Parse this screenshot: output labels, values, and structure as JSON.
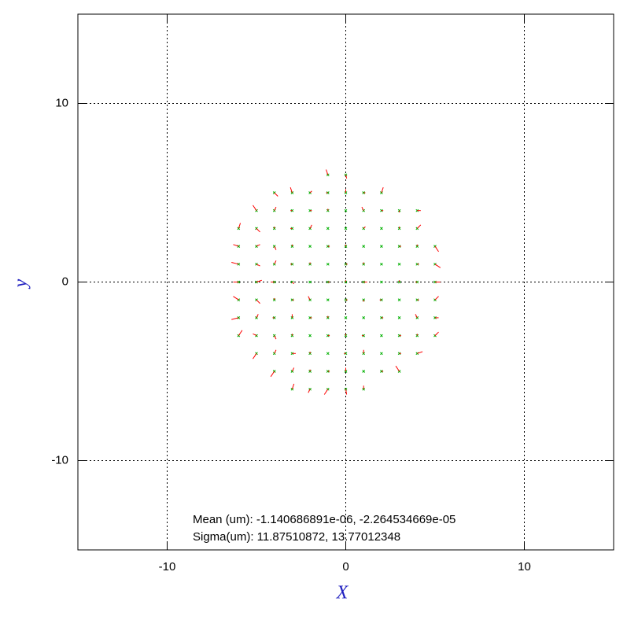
{
  "chart_data": {
    "type": "quiver",
    "xlabel": "X",
    "ylabel": "y",
    "xlim": [
      -15,
      15
    ],
    "ylim": [
      -15,
      15
    ],
    "xticks": [
      -10,
      0,
      10
    ],
    "yticks": [
      -10,
      0,
      10
    ],
    "grid": true,
    "point_color": "#00b000",
    "vector_color": "#ff0000",
    "annotations": [
      "Mean (um): -1.140686891e-06, -2.264534669e-05",
      "Sigma(um): 11.87510872, 13.77012348"
    ],
    "x": [
      -1,
      0,
      -4,
      -3,
      -2,
      -1,
      0,
      1,
      2,
      -5,
      -4,
      -3,
      -2,
      -1,
      0,
      1,
      2,
      3,
      4,
      -6,
      -5,
      -4,
      -3,
      -2,
      -1,
      0,
      1,
      2,
      3,
      4,
      -6,
      -5,
      -4,
      -3,
      -2,
      -1,
      0,
      1,
      2,
      3,
      4,
      5,
      -6,
      -5,
      -4,
      -3,
      -2,
      -1,
      0,
      1,
      2,
      3,
      4,
      5,
      -6,
      -5,
      -4,
      -3,
      -2,
      -1,
      0,
      1,
      2,
      3,
      4,
      5,
      -6,
      -5,
      -4,
      -3,
      -2,
      -1,
      0,
      1,
      2,
      3,
      4,
      5,
      -6,
      -5,
      -4,
      -3,
      -2,
      -1,
      0,
      1,
      2,
      3,
      4,
      5,
      -6,
      -5,
      -4,
      -3,
      -2,
      -1,
      0,
      1,
      2,
      3,
      4,
      5,
      -5,
      -4,
      -3,
      -2,
      -1,
      0,
      1,
      2,
      3,
      4,
      -4,
      -3,
      -2,
      -1,
      0,
      1,
      2,
      3,
      -3,
      -2,
      -1,
      0,
      1
    ],
    "y": [
      6,
      6,
      5,
      5,
      5,
      5,
      5,
      5,
      5,
      4,
      4,
      4,
      4,
      4,
      4,
      4,
      4,
      4,
      4,
      3,
      3,
      3,
      3,
      3,
      3,
      3,
      3,
      3,
      3,
      3,
      2,
      2,
      2,
      2,
      2,
      2,
      2,
      2,
      2,
      2,
      2,
      2,
      1,
      1,
      1,
      1,
      1,
      1,
      1,
      1,
      1,
      1,
      1,
      1,
      0,
      0,
      0,
      0,
      0,
      0,
      0,
      0,
      0,
      0,
      0,
      0,
      -1,
      -1,
      -1,
      -1,
      -1,
      -1,
      -1,
      -1,
      -1,
      -1,
      -1,
      -1,
      -2,
      -2,
      -2,
      -2,
      -2,
      -2,
      -2,
      -2,
      -2,
      -2,
      -2,
      -2,
      -3,
      -3,
      -3,
      -3,
      -3,
      -3,
      -3,
      -3,
      -3,
      -3,
      -3,
      -3,
      -4,
      -4,
      -4,
      -4,
      -4,
      -4,
      -4,
      -4,
      -4,
      -4,
      -5,
      -5,
      -5,
      -5,
      -5,
      -5,
      -5,
      -5,
      -6,
      -6,
      -6,
      -6,
      -6
    ],
    "u": [
      -0.1,
      0.05,
      0.2,
      -0.1,
      0.1,
      -0.1,
      0,
      0.1,
      0.1,
      -0.2,
      0.1,
      -0.1,
      0.1,
      0,
      0,
      -0.1,
      0.1,
      0,
      0.2,
      0.1,
      0.2,
      0,
      -0.1,
      0.1,
      0,
      0,
      0.1,
      0,
      0,
      0.2,
      -0.3,
      0.2,
      0.1,
      0,
      0,
      0.1,
      0,
      0,
      0,
      0.1,
      0,
      0.2,
      -0.4,
      0.2,
      0.1,
      -0.1,
      0,
      0,
      0.1,
      0,
      0,
      0,
      0.1,
      0.3,
      -0.3,
      0.3,
      -0.2,
      0.1,
      0,
      0.1,
      0,
      0.2,
      0,
      0,
      -0.1,
      0.3,
      -0.3,
      0.2,
      0,
      0.1,
      -0.1,
      0,
      0.1,
      0,
      -0.1,
      0,
      0.1,
      0.2,
      -0.4,
      0.1,
      -0.1,
      0,
      0.1,
      0,
      0,
      0,
      0.1,
      0,
      -0.1,
      0.2,
      0.2,
      -0.2,
      0.1,
      0,
      0,
      0.1,
      0,
      -0.1,
      0,
      0.1,
      0,
      0.2,
      -0.2,
      0.1,
      0.2,
      0,
      0,
      -0.1,
      0,
      0,
      0.1,
      0.3,
      -0.2,
      0.1,
      0,
      0.1,
      0,
      0,
      0.1,
      -0.2,
      0.1,
      -0.1,
      -0.2,
      0.05,
      0
    ],
    "v": [
      0.3,
      -0.2,
      -0.2,
      0.3,
      0.1,
      0,
      0.2,
      0,
      0.3,
      0.3,
      0.2,
      0,
      0,
      0.1,
      0,
      0.2,
      0,
      -0.1,
      0,
      0.3,
      -0.2,
      0.1,
      0,
      0.2,
      0,
      0,
      0.1,
      0,
      0.1,
      0.2,
      0.1,
      0.1,
      -0.2,
      0.1,
      0,
      0,
      0.1,
      0,
      0,
      0,
      0.1,
      -0.3,
      0.1,
      -0.1,
      0.2,
      0,
      0.1,
      0,
      0,
      0.1,
      0,
      0,
      0,
      -0.2,
      0,
      0.1,
      0,
      -0.1,
      0,
      0,
      0.1,
      0,
      0,
      0.1,
      0,
      0,
      0.2,
      -0.2,
      0.1,
      0,
      0.2,
      0,
      0,
      -0.1,
      0,
      0,
      0,
      0.2,
      -0.1,
      0.2,
      0,
      0.2,
      0,
      0.1,
      0,
      0,
      0,
      0,
      0.2,
      0,
      0.3,
      0.1,
      -0.2,
      0.1,
      0,
      0,
      0.1,
      0,
      0,
      0,
      0.1,
      0.2,
      -0.3,
      0.2,
      0,
      0.1,
      0,
      0,
      0.2,
      0,
      0,
      0.1,
      -0.3,
      0.2,
      0.1,
      0,
      0.2,
      0,
      0,
      0.3,
      0.3,
      -0.2,
      -0.3,
      -0.3,
      0.2
    ]
  }
}
